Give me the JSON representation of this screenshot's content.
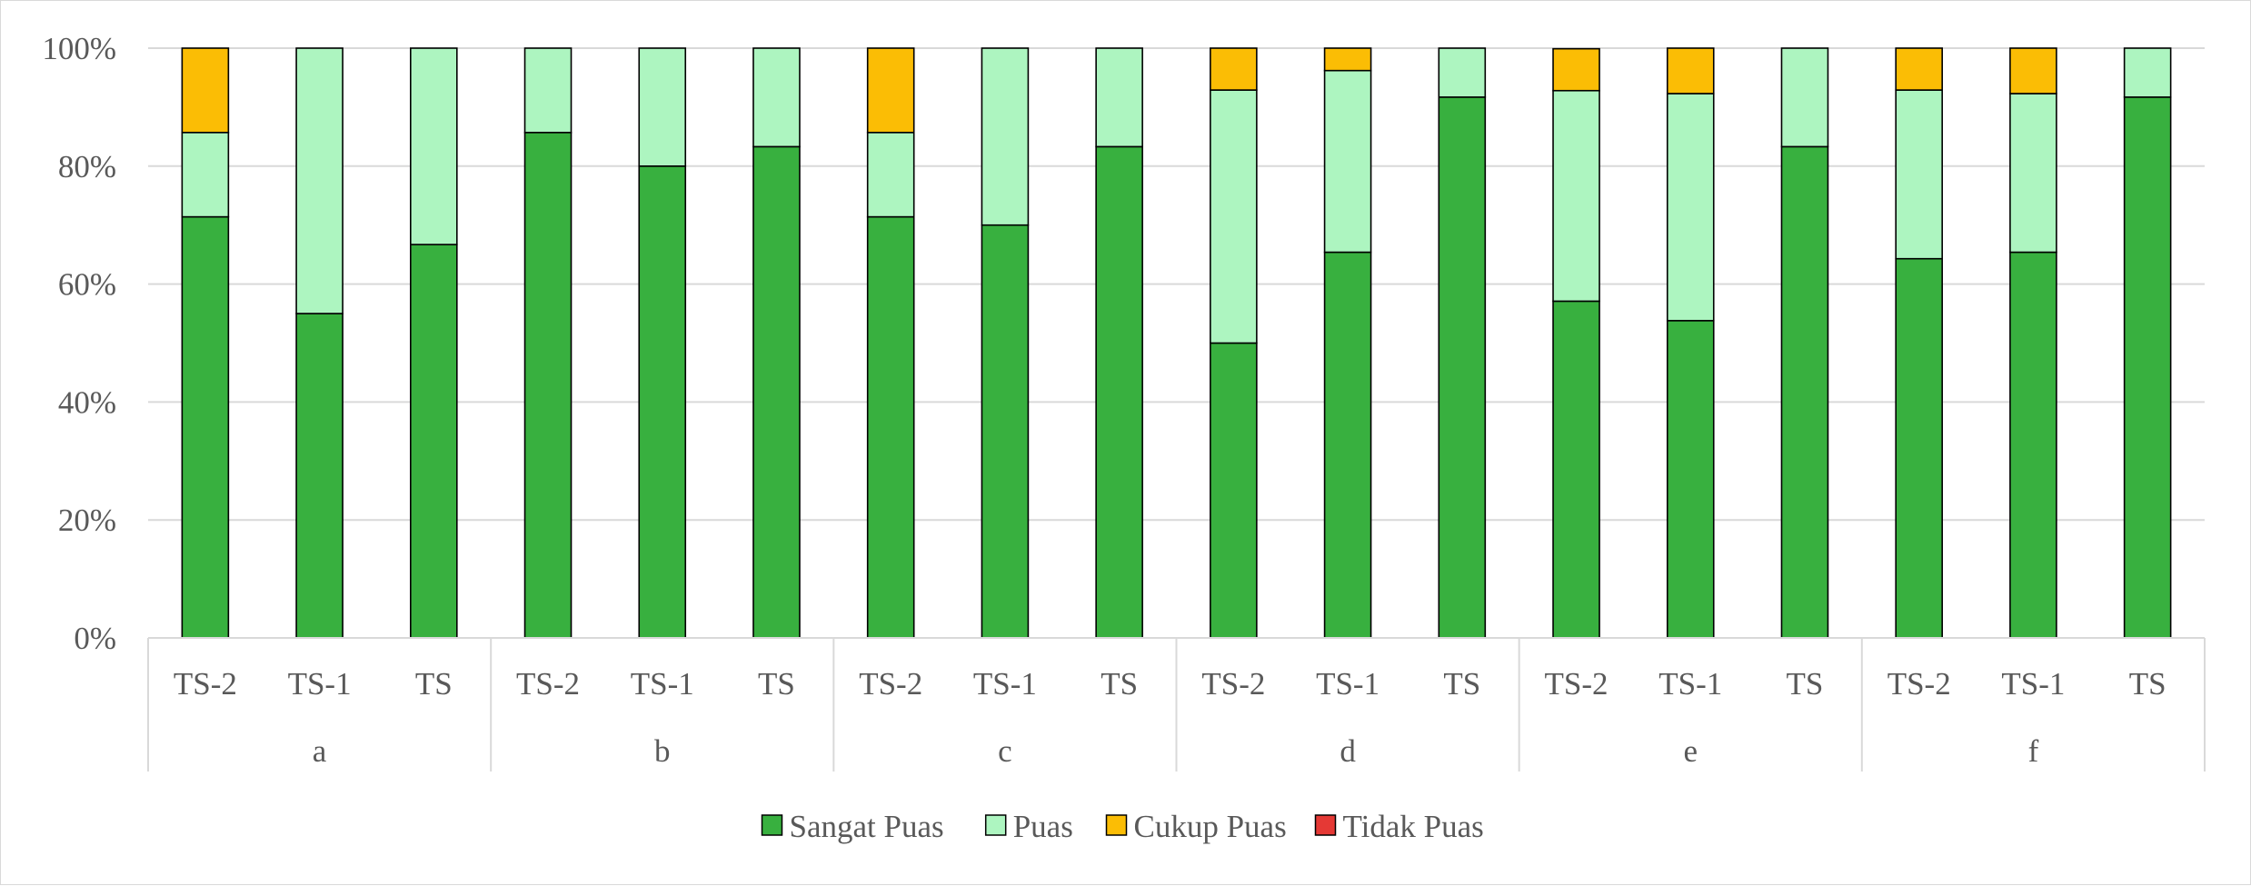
{
  "chart_data": {
    "type": "bar",
    "stacked": true,
    "percent_stacked": true,
    "groups": [
      "a",
      "b",
      "c",
      "d",
      "e",
      "f"
    ],
    "subcategories": [
      "TS-2",
      "TS-1",
      "TS"
    ],
    "y_ticks": [
      "0%",
      "20%",
      "40%",
      "60%",
      "80%",
      "100%"
    ],
    "ylim": [
      0,
      100
    ],
    "grid": true,
    "legend_position": "bottom",
    "series": [
      {
        "name": "Sangat Puas",
        "color": "#38b03f",
        "values": [
          71.4,
          55,
          66.7,
          85.7,
          80,
          83.3,
          71.4,
          70,
          83.3,
          50,
          65.4,
          91.7,
          57.1,
          53.8,
          83.3,
          64.3,
          65.4,
          91.7
        ]
      },
      {
        "name": "Puas",
        "color": "#adf5c0",
        "values": [
          14.3,
          45,
          33.3,
          14.3,
          20,
          16.7,
          14.3,
          30,
          16.7,
          42.9,
          30.8,
          8.3,
          35.7,
          38.5,
          16.7,
          28.6,
          26.9,
          8.3
        ]
      },
      {
        "name": "Cukup Puas",
        "color": "#fbbd05",
        "values": [
          14.3,
          0,
          0,
          0,
          0,
          0,
          14.3,
          0,
          0,
          7.1,
          3.8,
          0,
          7.1,
          7.7,
          0,
          7.1,
          7.7,
          0
        ]
      },
      {
        "name": "Tidak Puas",
        "color": "#e53935",
        "values": [
          0,
          0,
          0,
          0,
          0,
          0,
          0,
          0,
          0,
          0,
          0,
          0,
          0,
          0,
          0,
          0,
          0,
          0
        ]
      }
    ]
  }
}
